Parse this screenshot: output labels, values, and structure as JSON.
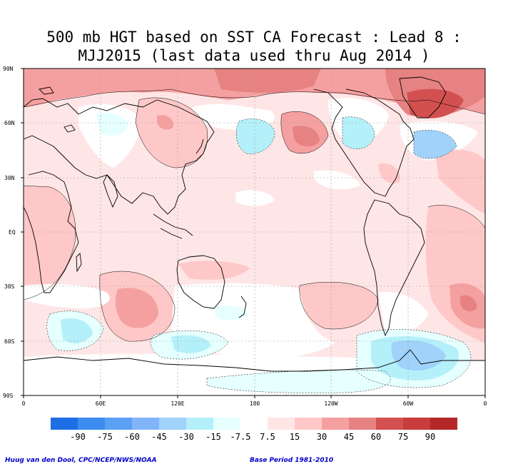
{
  "title_line1": "500 mb HGT based on SST CA Forecast : Lead 8 :",
  "title_line2": "MJJ2015 (last data used thru Aug 2014 )",
  "lat_labels": [
    "90N",
    "60N",
    "30N",
    "EQ",
    "30S",
    "60S",
    "90S"
  ],
  "lon_labels": [
    "0",
    "60E",
    "120E",
    "180",
    "120W",
    "60W",
    "0"
  ],
  "legend": {
    "labels": [
      "-90",
      "-75",
      "-60",
      "-45",
      "-30",
      "-15",
      "-7.5",
      "7.5",
      "15",
      "30",
      "45",
      "60",
      "75",
      "90"
    ],
    "colors": [
      "#1e6ee6",
      "#3c8cf0",
      "#5aa0f5",
      "#82b4fa",
      "#a0d2fa",
      "#b4f0fa",
      "#e6ffff",
      "#ffffff",
      "#ffe6e6",
      "#ffc8c8",
      "#f5a0a0",
      "#e68282",
      "#d25050",
      "#c83c3c",
      "#b42828"
    ]
  },
  "footer_left": "Huug van den Dool, CPC/NCEP/NWS/NOAA",
  "footer_right": "Base Period 1981-2010"
}
